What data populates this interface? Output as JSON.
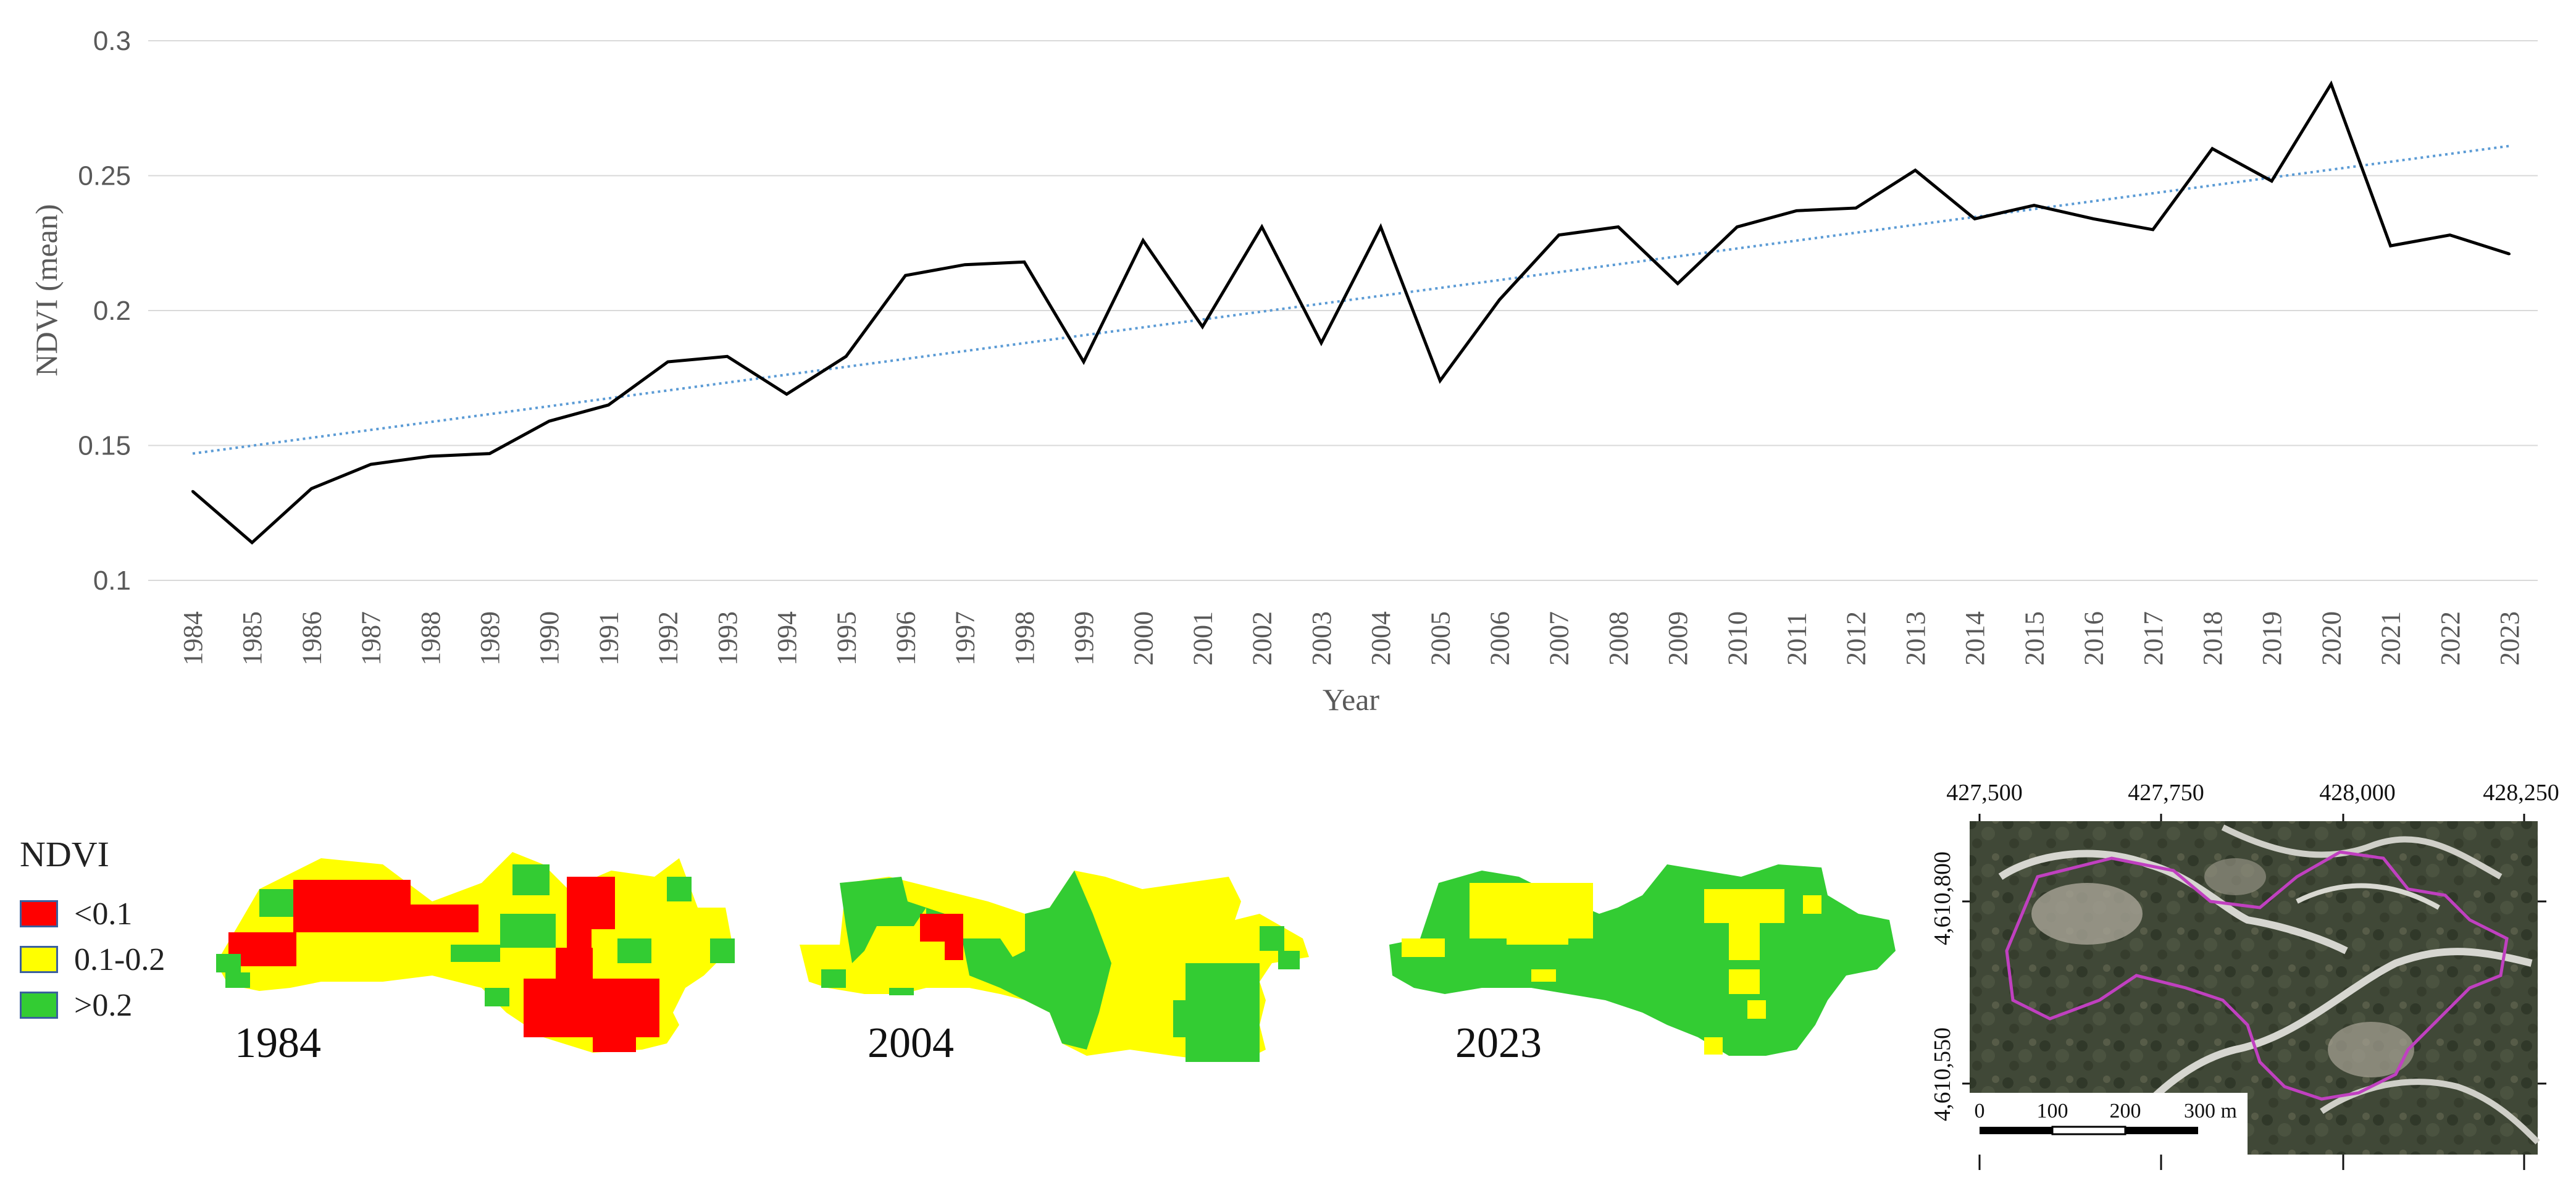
{
  "chart_data": {
    "type": "line",
    "title": "",
    "xlabel": "Year",
    "ylabel": "NDVI (mean)",
    "ylim": [
      0.1,
      0.3
    ],
    "yticks": [
      "0.1",
      "0.15",
      "0.2",
      "0.25",
      "0.3"
    ],
    "grid": true,
    "categories": [
      "1984",
      "1985",
      "1986",
      "1987",
      "1988",
      "1989",
      "1990",
      "1991",
      "1992",
      "1993",
      "1994",
      "1995",
      "1996",
      "1997",
      "1998",
      "1999",
      "2000",
      "2001",
      "2002",
      "2003",
      "2004",
      "2005",
      "2006",
      "2007",
      "2008",
      "2009",
      "2010",
      "2011",
      "2012",
      "2013",
      "2014",
      "2015",
      "2016",
      "2017",
      "2018",
      "2019",
      "2020",
      "2021",
      "2022",
      "2023"
    ],
    "series": [
      {
        "name": "NDVI (mean)",
        "style": "solid",
        "color": "#000000",
        "values": [
          0.133,
          0.114,
          0.134,
          0.143,
          0.146,
          0.147,
          0.159,
          0.165,
          0.181,
          0.183,
          0.169,
          0.183,
          0.213,
          0.217,
          0.218,
          0.181,
          0.226,
          0.194,
          0.231,
          0.188,
          0.231,
          0.174,
          0.204,
          0.228,
          0.231,
          0.21,
          0.231,
          0.237,
          0.238,
          0.252,
          0.234,
          0.239,
          0.234,
          0.23,
          0.26,
          0.248,
          0.284,
          0.224,
          0.228,
          0.221
        ]
      },
      {
        "name": "Linear trend",
        "style": "dotted",
        "color": "#5b9bd5",
        "start": 0.147,
        "end": 0.261
      }
    ]
  },
  "legend": {
    "title": "NDVI",
    "items": [
      {
        "label": "<0.1",
        "color": "#ff0000"
      },
      {
        "label": "0.1-0.2",
        "color": "#ffff00"
      },
      {
        "label": ">0.2",
        "color": "#33cc33"
      }
    ]
  },
  "maps": [
    {
      "year": "1984"
    },
    {
      "year": "2004"
    },
    {
      "year": "2023"
    }
  ],
  "aerial": {
    "x_coords": [
      "427,500",
      "427,750",
      "428,000",
      "428,250"
    ],
    "y_coords": [
      "4,610,800",
      "4,610,550"
    ],
    "scale_labels": [
      "0",
      "100",
      "200",
      "300 m"
    ],
    "boundary_color": "#c040c0"
  }
}
